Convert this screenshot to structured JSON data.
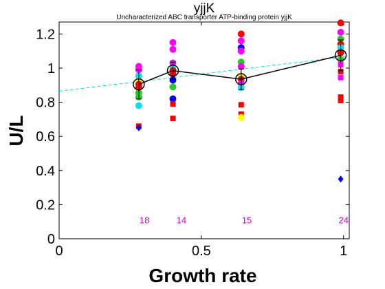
{
  "chart_data": {
    "type": "scatter",
    "title": "yjjK",
    "subtitle": "Uncharacterized ABC transporter ATP-binding protein yjjK",
    "xlabel": "Growth rate",
    "ylabel": "U/L",
    "xlim": [
      0,
      1.02
    ],
    "ylim": [
      0,
      1.27
    ],
    "xticks": [
      {
        "value": 0,
        "label": "0"
      },
      {
        "value": 0.5,
        "label": "0.5"
      },
      {
        "value": 1,
        "label": "1"
      }
    ],
    "yticks": [
      {
        "value": 0,
        "label": "0"
      },
      {
        "value": 0.2,
        "label": "0.2"
      },
      {
        "value": 0.4,
        "label": "0.4"
      },
      {
        "value": 0.6,
        "label": "0.6"
      },
      {
        "value": 0.8,
        "label": "0.8"
      },
      {
        "value": 1,
        "label": "1"
      },
      {
        "value": 1.2,
        "label": "1.2"
      }
    ],
    "count_labels": [
      {
        "x": 0.3,
        "y": 0.09,
        "text": "18"
      },
      {
        "x": 0.43,
        "y": 0.09,
        "text": "14"
      },
      {
        "x": 0.66,
        "y": 0.09,
        "text": "15"
      },
      {
        "x": 1.0,
        "y": 0.09,
        "text": "24"
      }
    ],
    "trend_line": {
      "x": [
        0,
        1.02
      ],
      "y": [
        0.865,
        1.07
      ],
      "color": "#00e5ee"
    },
    "mean_series": {
      "x": [
        0.28,
        0.4,
        0.64,
        0.99
      ],
      "y": [
        0.905,
        0.985,
        0.935,
        1.075
      ],
      "err": [
        0.085,
        0.05,
        0.06,
        0.09
      ],
      "color": "#000000"
    },
    "points": [
      {
        "x": 0.28,
        "y": 1.01,
        "color": "#ff00ff",
        "shape": "circle"
      },
      {
        "x": 0.28,
        "y": 0.99,
        "color": "#ff00ff",
        "shape": "circle"
      },
      {
        "x": 0.28,
        "y": 0.955,
        "color": "#00e5ee",
        "shape": "circle"
      },
      {
        "x": 0.28,
        "y": 0.925,
        "color": "#ffff00",
        "shape": "circle"
      },
      {
        "x": 0.28,
        "y": 0.905,
        "color": "#ff0000",
        "shape": "circle"
      },
      {
        "x": 0.28,
        "y": 0.885,
        "color": "#ff0000",
        "shape": "circle"
      },
      {
        "x": 0.28,
        "y": 0.855,
        "color": "#22cc22",
        "shape": "circle"
      },
      {
        "x": 0.28,
        "y": 0.83,
        "color": "#22cc22",
        "shape": "circle"
      },
      {
        "x": 0.28,
        "y": 0.78,
        "color": "#00e5ee",
        "shape": "circle"
      },
      {
        "x": 0.28,
        "y": 0.66,
        "color": "#ff0000",
        "shape": "square"
      },
      {
        "x": 0.28,
        "y": 0.65,
        "color": "#0000ff",
        "shape": "diamond"
      },
      {
        "x": 0.4,
        "y": 1.15,
        "color": "#ff00ff",
        "shape": "circle"
      },
      {
        "x": 0.4,
        "y": 1.11,
        "color": "#ff00ff",
        "shape": "circle"
      },
      {
        "x": 0.4,
        "y": 1.03,
        "color": "#ff00ff",
        "shape": "circle"
      },
      {
        "x": 0.4,
        "y": 0.995,
        "color": "#00e5ee",
        "shape": "circle"
      },
      {
        "x": 0.4,
        "y": 0.985,
        "color": "#ff0000",
        "shape": "circle"
      },
      {
        "x": 0.4,
        "y": 0.965,
        "color": "#ff0000",
        "shape": "circle"
      },
      {
        "x": 0.4,
        "y": 0.93,
        "color": "#0000ff",
        "shape": "circle"
      },
      {
        "x": 0.4,
        "y": 0.89,
        "color": "#22cc22",
        "shape": "circle"
      },
      {
        "x": 0.4,
        "y": 0.82,
        "color": "#0000ff",
        "shape": "circle"
      },
      {
        "x": 0.4,
        "y": 0.79,
        "color": "#ff0000",
        "shape": "square"
      },
      {
        "x": 0.4,
        "y": 0.705,
        "color": "#ff0000",
        "shape": "square"
      },
      {
        "x": 0.64,
        "y": 1.2,
        "color": "#ff0000",
        "shape": "circle"
      },
      {
        "x": 0.64,
        "y": 1.16,
        "color": "#ff00ff",
        "shape": "circle"
      },
      {
        "x": 0.64,
        "y": 1.12,
        "color": "#0000ff",
        "shape": "circle"
      },
      {
        "x": 0.64,
        "y": 1.1,
        "color": "#ff00ff",
        "shape": "circle"
      },
      {
        "x": 0.64,
        "y": 1.035,
        "color": "#22cc22",
        "shape": "circle"
      },
      {
        "x": 0.64,
        "y": 1.01,
        "color": "#ff00ff",
        "shape": "circle"
      },
      {
        "x": 0.64,
        "y": 0.955,
        "color": "#ffff00",
        "shape": "circle"
      },
      {
        "x": 0.64,
        "y": 0.935,
        "color": "#ff0000",
        "shape": "circle"
      },
      {
        "x": 0.64,
        "y": 0.91,
        "color": "#ff00ff",
        "shape": "circle"
      },
      {
        "x": 0.64,
        "y": 0.885,
        "color": "#00e5ee",
        "shape": "circle"
      },
      {
        "x": 0.64,
        "y": 0.785,
        "color": "#ff0000",
        "shape": "square"
      },
      {
        "x": 0.64,
        "y": 0.73,
        "color": "#ff0000",
        "shape": "square"
      },
      {
        "x": 0.64,
        "y": 0.71,
        "color": "#ffff00",
        "shape": "circle"
      },
      {
        "x": 0.99,
        "y": 1.265,
        "color": "#ff0000",
        "shape": "circle"
      },
      {
        "x": 0.99,
        "y": 1.21,
        "color": "#ff00ff",
        "shape": "circle"
      },
      {
        "x": 0.99,
        "y": 1.17,
        "color": "#22cc22",
        "shape": "circle"
      },
      {
        "x": 0.99,
        "y": 1.14,
        "color": "#ff0000",
        "shape": "circle"
      },
      {
        "x": 0.99,
        "y": 1.12,
        "color": "#00e5ee",
        "shape": "circle"
      },
      {
        "x": 0.99,
        "y": 1.09,
        "color": "#ff0000",
        "shape": "circle"
      },
      {
        "x": 0.99,
        "y": 1.05,
        "color": "#22cc22",
        "shape": "circle"
      },
      {
        "x": 0.99,
        "y": 1.02,
        "color": "#ff00ff",
        "shape": "square"
      },
      {
        "x": 0.99,
        "y": 0.98,
        "color": "#ff0000",
        "shape": "square"
      },
      {
        "x": 0.99,
        "y": 0.945,
        "color": "#ff00ff",
        "shape": "square"
      },
      {
        "x": 0.99,
        "y": 0.83,
        "color": "#ff0000",
        "shape": "square"
      },
      {
        "x": 0.99,
        "y": 0.81,
        "color": "#ff0000",
        "shape": "square"
      },
      {
        "x": 0.99,
        "y": 0.35,
        "color": "#0000ff",
        "shape": "diamond"
      }
    ]
  }
}
